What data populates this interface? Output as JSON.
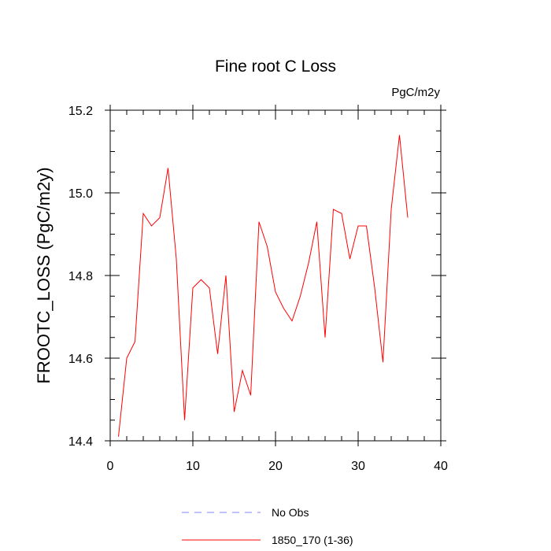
{
  "chart_data": {
    "type": "line",
    "title": "Fine root C Loss",
    "units": "PgC/m2y",
    "ylabel": "FROOTC_LOSS  (PgC/m2y)",
    "xlabel": "",
    "xlim": [
      0,
      40
    ],
    "ylim": [
      14.4,
      15.2
    ],
    "x_ticks": [
      0,
      10,
      20,
      30,
      40
    ],
    "y_ticks": [
      14.4,
      14.6,
      14.8,
      15.0,
      15.2
    ],
    "x_tick_labels": [
      "0",
      "10",
      "20",
      "30",
      "40"
    ],
    "y_tick_labels": [
      "14.4",
      "14.6",
      "14.8",
      "15.0",
      "15.2"
    ],
    "grid": false,
    "legend_position": "bottom-center",
    "series": [
      {
        "name": "No Obs",
        "color": "#8080ff",
        "dash": true,
        "x": [],
        "values": []
      },
      {
        "name": "1850_170 (1-36)",
        "color": "#ff0000",
        "dash": false,
        "x": [
          1,
          2,
          3,
          4,
          5,
          6,
          7,
          8,
          9,
          10,
          11,
          12,
          13,
          14,
          15,
          16,
          17,
          18,
          19,
          20,
          21,
          22,
          23,
          24,
          25,
          26,
          27,
          28,
          29,
          30,
          31,
          32,
          33,
          34,
          35,
          36
        ],
        "values": [
          14.41,
          14.6,
          14.64,
          14.95,
          14.92,
          14.94,
          15.06,
          14.84,
          14.45,
          14.77,
          14.79,
          14.77,
          14.61,
          14.8,
          14.47,
          14.57,
          14.51,
          14.93,
          14.87,
          14.76,
          14.72,
          14.69,
          14.75,
          14.83,
          14.93,
          14.65,
          14.96,
          14.95,
          14.84,
          14.92,
          14.92,
          14.77,
          14.59,
          14.96,
          15.14,
          14.94
        ]
      }
    ]
  }
}
